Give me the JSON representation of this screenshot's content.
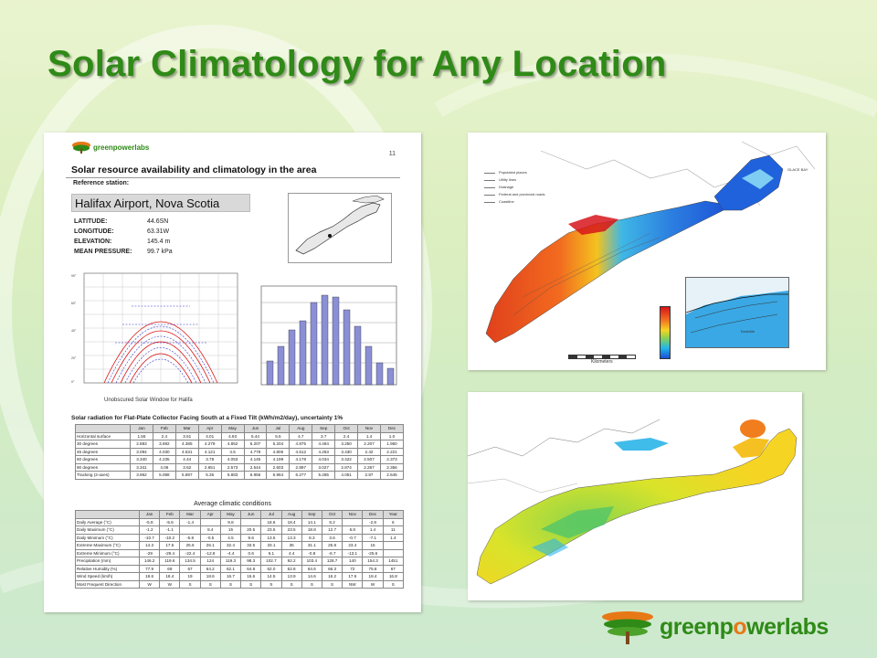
{
  "slide": {
    "title": "Solar Climatology for Any Location"
  },
  "colors": {
    "title_green": "#2f8a17",
    "brand_orange": "#e77816"
  },
  "document": {
    "logo_text": "greenpowerlabs",
    "page_number": "11",
    "heading": "Solar resource availability and climatology in the area",
    "reference_label": "Reference station:",
    "station_name": "Halifax Airport, Nova Scotia",
    "properties": [
      {
        "key": "LATITUDE:",
        "value": "44.6SN"
      },
      {
        "key": "LONGITUDE:",
        "value": "63.31W"
      },
      {
        "key": "ELEVATION:",
        "value": "145.4 m"
      },
      {
        "key": "MEAN PRESSURE:",
        "value": "99.7 kPa"
      }
    ],
    "sunpath_caption": "Unobscured Solar Window for Halifa",
    "solar_table_title": "Solar radiation for Flat-Plate Collector Facing South at a Fixed Tilt (kWh/m2/day), uncertainty 1%",
    "solar_table": {
      "headers": [
        "",
        "Jan",
        "Feb",
        "Mar",
        "Apr",
        "May",
        "Jun",
        "Jul",
        "Aug",
        "Sep",
        "Oct",
        "Nov",
        "Dec"
      ],
      "rows": [
        {
          "label": "Horizontal surface",
          "cells": [
            "1.55",
            "2.4",
            "3.51",
            "4.01",
            "4.93",
            "5.44",
            "5.5",
            "4.7",
            "3.7",
            "2.4",
            "1.4",
            "1.0"
          ]
        },
        {
          "label": "30 degrees",
          "cells": [
            "2.883",
            "3.692",
            "4.385",
            "4.279",
            "4.852",
            "5.207",
            "5.204",
            "4.875",
            "4.484",
            "3.250",
            "2.207",
            "1.950"
          ]
        },
        {
          "label": "45 degrees",
          "cells": [
            "3.094",
            "4.030",
            "4.531",
            "4.121",
            "4.5",
            "4.778",
            "4.806",
            "4.612",
            "4.263",
            "3.430",
            "2.42",
            "2.221"
          ]
        },
        {
          "label": "60 degrees",
          "cells": [
            "3.340",
            "4.235",
            "4.44",
            "3.78",
            "4.053",
            "4.145",
            "4.199",
            "4.178",
            "4.034",
            "3.422",
            "2.507",
            "2.373"
          ]
        },
        {
          "label": "90 degrees",
          "cells": [
            "3.341",
            "4.06",
            "3.62",
            "2.651",
            "2.573",
            "2.544",
            "2.603",
            "2.897",
            "3.027",
            "2.874",
            "2.267",
            "2.356"
          ]
        },
        {
          "label": "Tracking (2-axes)",
          "cells": [
            "3.962",
            "5.088",
            "5.897",
            "5.36",
            "6.883",
            "6.956",
            "6.964",
            "6.277",
            "5.285",
            "4.051",
            "2.87",
            "2.645"
          ]
        }
      ]
    },
    "climate_title": "Average climatic conditions",
    "climate_table": {
      "headers": [
        "",
        "Jan",
        "Feb",
        "Mar",
        "Apr",
        "May",
        "Jun",
        "Jul",
        "Aug",
        "Sep",
        "Oct",
        "Nov",
        "Dec",
        "Year"
      ],
      "rows": [
        {
          "label": "Daily Average (°C)",
          "cells": [
            "-5.8",
            "-5.6",
            "-1.4",
            "",
            "9.8",
            "",
            "18.6",
            "18.4",
            "14.1",
            "8.2",
            "",
            "-2.8",
            "6"
          ]
        },
        {
          "label": "Daily Maximum (°C)",
          "cells": [
            "-1.2",
            "-1.1",
            "",
            "8.4",
            "15",
            "20.5",
            "23.5",
            "23.5",
            "18.8",
            "12.7",
            "6.8",
            "1.4",
            "11"
          ]
        },
        {
          "label": "Daily Minimum (°C)",
          "cells": [
            "-10.7",
            "-10.2",
            "-5.8",
            "-0.5",
            "4.5",
            "9.6",
            "13.5",
            "13.3",
            "8.3",
            "3.6",
            "-0.7",
            "-7.1",
            "1.4"
          ]
        },
        {
          "label": "Extreme Maximum (°C)",
          "cells": [
            "14.3",
            "17.5",
            "25.6",
            "26.1",
            "32.4",
            "33.5",
            "33.1",
            "35",
            "31.1",
            "25.8",
            "23.4",
            "15",
            ""
          ]
        },
        {
          "label": "Extreme Minimum (°C)",
          "cells": [
            "-29",
            "-29.4",
            "-22.4",
            "-12.8",
            "-4.4",
            "0.6",
            "6.1",
            "4.4",
            "-0.8",
            "-6.7",
            "-13.1",
            "-25.6",
            ""
          ]
        },
        {
          "label": "Precipitation (mm)",
          "cells": [
            "146.2",
            "119.6",
            "134.5",
            "124",
            "119.3",
            "98.3",
            "102.7",
            "92.2",
            "103.4",
            "128.7",
            "140",
            "154.3",
            "1451"
          ]
        },
        {
          "label": "Relative Humidity (%)",
          "cells": [
            "77.9",
            "69",
            "67",
            "64.2",
            "62.1",
            "64.8",
            "62.0",
            "62.8",
            "64.6",
            "66.3",
            "72",
            "75.8",
            "67"
          ]
        },
        {
          "label": "Wind Speed (km/h)",
          "cells": [
            "18.6",
            "18.4",
            "19",
            "18.6",
            "16.7",
            "15.6",
            "14.5",
            "13.9",
            "14.6",
            "16.2",
            "17.6",
            "18.4",
            "16.8"
          ]
        },
        {
          "label": "Most Frequent Direction",
          "cells": [
            "W",
            "W",
            "S",
            "S",
            "S",
            "S",
            "S",
            "S",
            "S",
            "S",
            "NW",
            "W",
            "S"
          ]
        }
      ]
    }
  },
  "map_top": {
    "legend": [
      "Populated places",
      "Utility lines",
      "Drainage",
      "Federal and provincial roads",
      "Coastline"
    ],
    "label_glace_bay": "GLACE BAY",
    "scale_label": "Kilometers",
    "inset_label": "Kentville"
  },
  "brand": {
    "text_part1": "green",
    "text_part2": "p",
    "text_part3": "o",
    "text_part4": "werlabs"
  }
}
